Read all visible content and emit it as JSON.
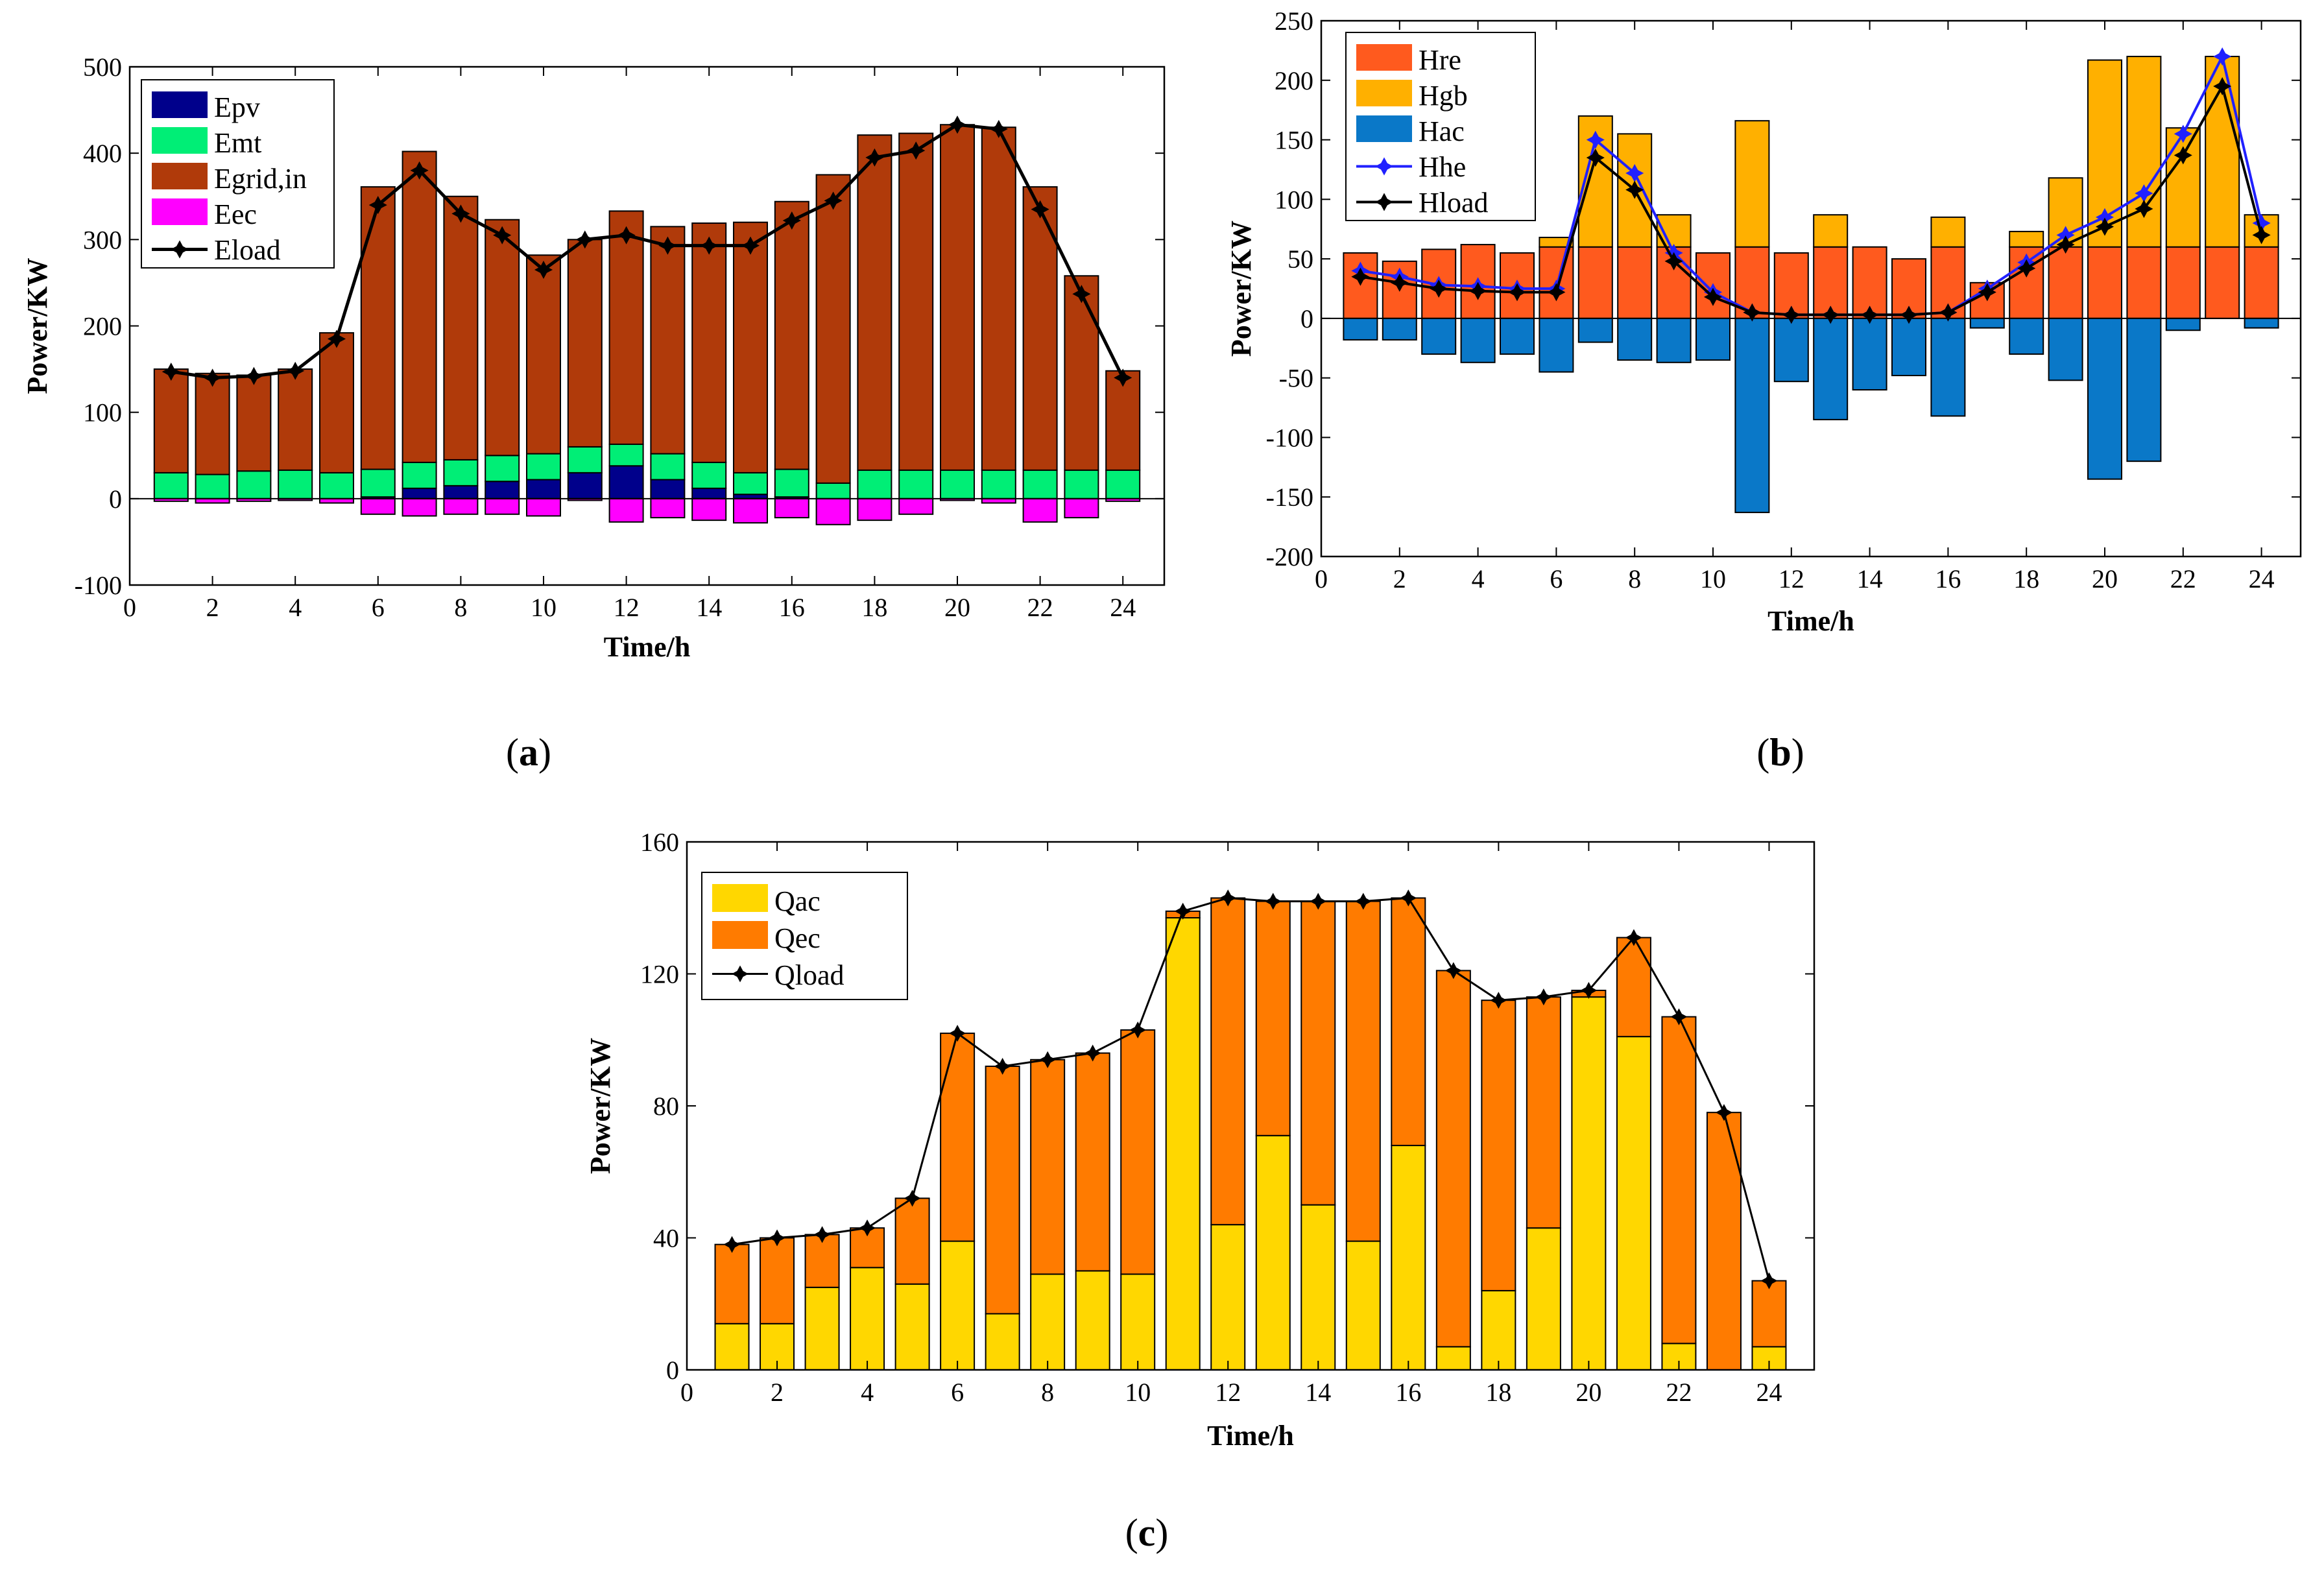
{
  "chart_data": [
    {
      "id": "a",
      "type": "bar",
      "stacked": true,
      "caption": "a",
      "xlabel": "Time/h",
      "ylabel": "Power/KW",
      "xlim": [
        0,
        25
      ],
      "ylim": [
        -100,
        500
      ],
      "xticks": [
        0,
        2,
        4,
        6,
        8,
        10,
        12,
        14,
        16,
        18,
        20,
        22,
        24
      ],
      "yticks": [
        -100,
        0,
        100,
        200,
        300,
        400,
        500
      ],
      "ytick_labels": [
        "-100",
        "0",
        "100",
        "200",
        "300",
        "400",
        "500"
      ],
      "legend_position": "top-left",
      "x": [
        1,
        2,
        3,
        4,
        5,
        6,
        7,
        8,
        9,
        10,
        11,
        12,
        13,
        14,
        15,
        16,
        17,
        18,
        19,
        20,
        21,
        22,
        23,
        24
      ],
      "series": [
        {
          "name": "Epv",
          "kind": "bar",
          "color": "#00008b",
          "values": [
            0,
            0,
            0,
            0,
            0,
            2,
            12,
            15,
            20,
            22,
            30,
            38,
            22,
            12,
            5,
            2,
            0,
            0,
            0,
            0,
            0,
            0,
            0,
            0
          ]
        },
        {
          "name": "Emt",
          "kind": "bar",
          "color": "#00ee76",
          "values": [
            30,
            28,
            32,
            33,
            30,
            32,
            30,
            30,
            30,
            30,
            30,
            25,
            30,
            30,
            25,
            32,
            18,
            33,
            33,
            33,
            33,
            33,
            33,
            33
          ]
        },
        {
          "name": "Egrid,in",
          "kind": "bar",
          "color": "#b03a0a",
          "values": [
            120,
            117,
            111,
            117,
            162,
            327,
            360,
            305,
            273,
            230,
            240,
            270,
            263,
            277,
            290,
            310,
            357,
            388,
            390,
            400,
            397,
            328,
            225,
            115
          ]
        },
        {
          "name": "Eec",
          "kind": "bar",
          "color": "#ff00ff",
          "values": [
            -3,
            -5,
            -3,
            -2,
            -5,
            -18,
            -20,
            -18,
            -18,
            -20,
            -2,
            -27,
            -22,
            -25,
            -28,
            -22,
            -30,
            -25,
            -18,
            -2,
            -5,
            -27,
            -22,
            -3
          ]
        },
        {
          "name": "Eload",
          "kind": "line",
          "color": "#000000",
          "values": [
            147,
            140,
            142,
            148,
            185,
            340,
            380,
            330,
            305,
            265,
            300,
            305,
            293,
            293,
            293,
            322,
            345,
            395,
            403,
            433,
            428,
            335,
            237,
            140
          ]
        }
      ]
    },
    {
      "id": "b",
      "type": "bar",
      "stacked": true,
      "caption": "b",
      "xlabel": "Time/h",
      "ylabel": "Power/KW",
      "xlim": [
        0,
        25
      ],
      "ylim": [
        -200,
        250
      ],
      "xticks": [
        0,
        2,
        4,
        6,
        8,
        10,
        12,
        14,
        16,
        18,
        20,
        22,
        24
      ],
      "yticks": [
        -200,
        -150,
        -100,
        -50,
        0,
        50,
        100,
        150,
        200,
        250
      ],
      "ytick_labels": [
        "-200",
        "-150",
        "-100",
        "-50",
        "0",
        "50",
        "100",
        "150",
        "200",
        "250"
      ],
      "legend_position": "top-left",
      "x": [
        1,
        2,
        3,
        4,
        5,
        6,
        7,
        8,
        9,
        10,
        11,
        12,
        13,
        14,
        15,
        16,
        17,
        18,
        19,
        20,
        21,
        22,
        23,
        24
      ],
      "series": [
        {
          "name": "Hre",
          "kind": "bar",
          "color": "#ff5a1e",
          "values": [
            55,
            48,
            58,
            62,
            55,
            60,
            60,
            60,
            60,
            55,
            60,
            55,
            60,
            60,
            50,
            60,
            30,
            60,
            60,
            60,
            60,
            60,
            60,
            60
          ]
        },
        {
          "name": "Hgb",
          "kind": "bar",
          "color": "#ffb000",
          "values": [
            0,
            0,
            0,
            0,
            0,
            8,
            110,
            95,
            27,
            0,
            106,
            0,
            27,
            0,
            0,
            25,
            0,
            13,
            58,
            157,
            160,
            100,
            160,
            27
          ]
        },
        {
          "name": "Hac",
          "kind": "bar",
          "color": "#0a78c8",
          "values": [
            -18,
            -18,
            -30,
            -37,
            -30,
            -45,
            -20,
            -35,
            -37,
            -35,
            -163,
            -53,
            -85,
            -60,
            -48,
            -82,
            -8,
            -30,
            -52,
            -135,
            -120,
            -10,
            0,
            -8
          ]
        },
        {
          "name": "Hhe",
          "kind": "line",
          "color": "#2020ff",
          "values": [
            40,
            35,
            28,
            27,
            25,
            25,
            150,
            122,
            55,
            22,
            5,
            3,
            3,
            3,
            3,
            5,
            25,
            47,
            70,
            85,
            105,
            155,
            220,
            80
          ]
        },
        {
          "name": "Hload",
          "kind": "line",
          "color": "#000000",
          "values": [
            35,
            30,
            25,
            23,
            22,
            22,
            135,
            108,
            48,
            18,
            5,
            3,
            3,
            3,
            3,
            5,
            22,
            42,
            62,
            77,
            92,
            137,
            195,
            70
          ]
        }
      ]
    },
    {
      "id": "c",
      "type": "bar",
      "stacked": true,
      "caption": "c",
      "xlabel": "Time/h",
      "ylabel": "Power/KW",
      "xlim": [
        0,
        25
      ],
      "ylim": [
        0,
        160
      ],
      "xticks": [
        0,
        2,
        4,
        6,
        8,
        10,
        12,
        14,
        16,
        18,
        20,
        22,
        24
      ],
      "yticks": [
        0,
        40,
        80,
        120,
        160
      ],
      "ytick_labels": [
        "0",
        "40",
        "80",
        "120",
        "160"
      ],
      "legend_position": "top-left",
      "x": [
        1,
        2,
        3,
        4,
        5,
        6,
        7,
        8,
        9,
        10,
        11,
        12,
        13,
        14,
        15,
        16,
        17,
        18,
        19,
        20,
        21,
        22,
        23,
        24
      ],
      "series": [
        {
          "name": "Qac",
          "kind": "bar",
          "color": "#ffd700",
          "values": [
            14,
            14,
            25,
            31,
            26,
            39,
            17,
            29,
            30,
            29,
            137,
            44,
            71,
            50,
            39,
            68,
            7,
            24,
            43,
            113,
            101,
            8,
            0,
            7
          ]
        },
        {
          "name": "Qec",
          "kind": "bar",
          "color": "#ff7b00",
          "values": [
            24,
            26,
            16,
            12,
            26,
            63,
            75,
            65,
            66,
            74,
            2,
            99,
            71,
            92,
            103,
            75,
            114,
            88,
            70,
            2,
            30,
            99,
            78,
            20
          ]
        },
        {
          "name": "Qload",
          "kind": "line",
          "color": "#000000",
          "values": [
            38,
            40,
            41,
            43,
            52,
            102,
            92,
            94,
            96,
            103,
            139,
            143,
            142,
            142,
            142,
            143,
            121,
            112,
            113,
            115,
            131,
            107,
            78,
            27
          ]
        }
      ]
    }
  ]
}
